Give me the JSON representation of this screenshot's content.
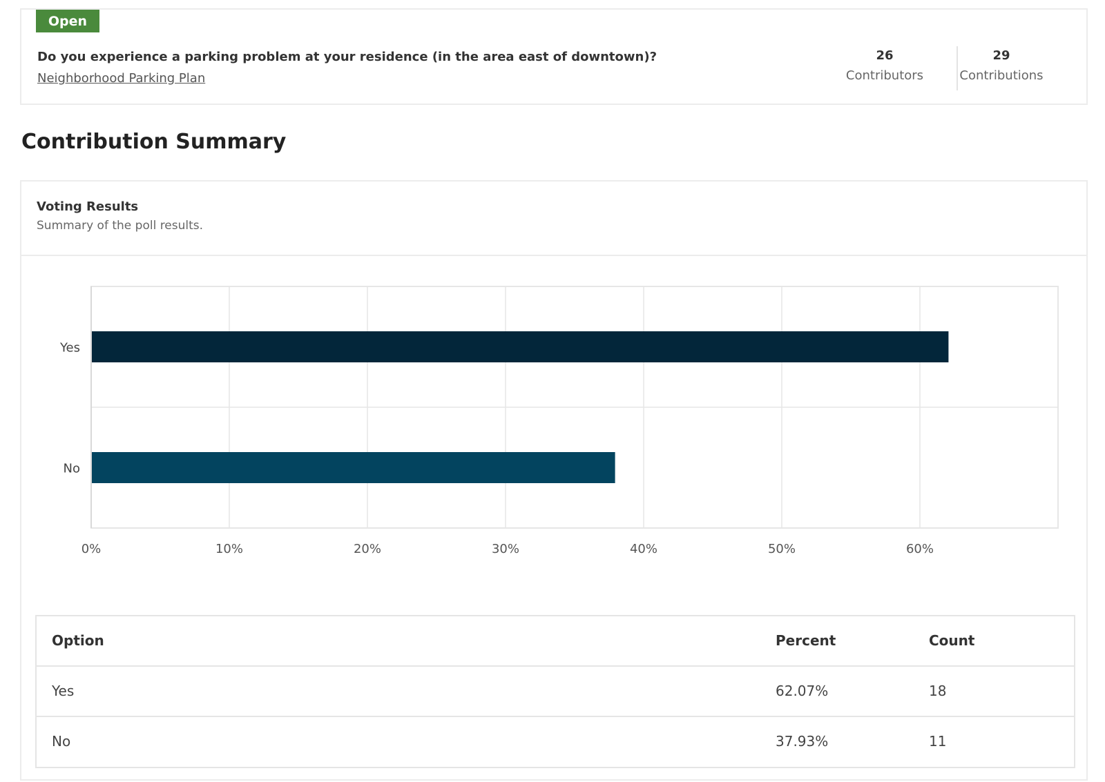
{
  "poll": {
    "status": "Open",
    "question": "Do you experience a parking problem at your residence (in the area east of downtown)?",
    "project_link": "Neighborhood Parking Plan",
    "contributors_count": "26",
    "contributors_label": "Contributors",
    "contributions_count": "29",
    "contributions_label": "Contributions"
  },
  "summary": {
    "title": "Contribution Summary",
    "card_title": "Voting Results",
    "card_subtitle": "Summary of the poll results."
  },
  "colors": {
    "status_badge": "#4a8a3c",
    "bar_yes": "#03263a",
    "bar_no": "#03445f"
  },
  "chart_data": {
    "type": "bar",
    "orientation": "horizontal",
    "categories": [
      "Yes",
      "No"
    ],
    "values": [
      62.07,
      37.93
    ],
    "xlim": [
      0,
      70
    ],
    "x_ticks": [
      0,
      10,
      20,
      30,
      40,
      50,
      60
    ],
    "x_tick_labels": [
      "0%",
      "10%",
      "20%",
      "30%",
      "40%",
      "50%",
      "60%"
    ],
    "grid": true,
    "title": "",
    "xlabel": "",
    "ylabel": ""
  },
  "table": {
    "headers": {
      "option": "Option",
      "percent": "Percent",
      "count": "Count"
    },
    "rows": [
      {
        "option": "Yes",
        "percent": "62.07%",
        "count": "18"
      },
      {
        "option": "No",
        "percent": "37.93%",
        "count": "11"
      }
    ]
  }
}
